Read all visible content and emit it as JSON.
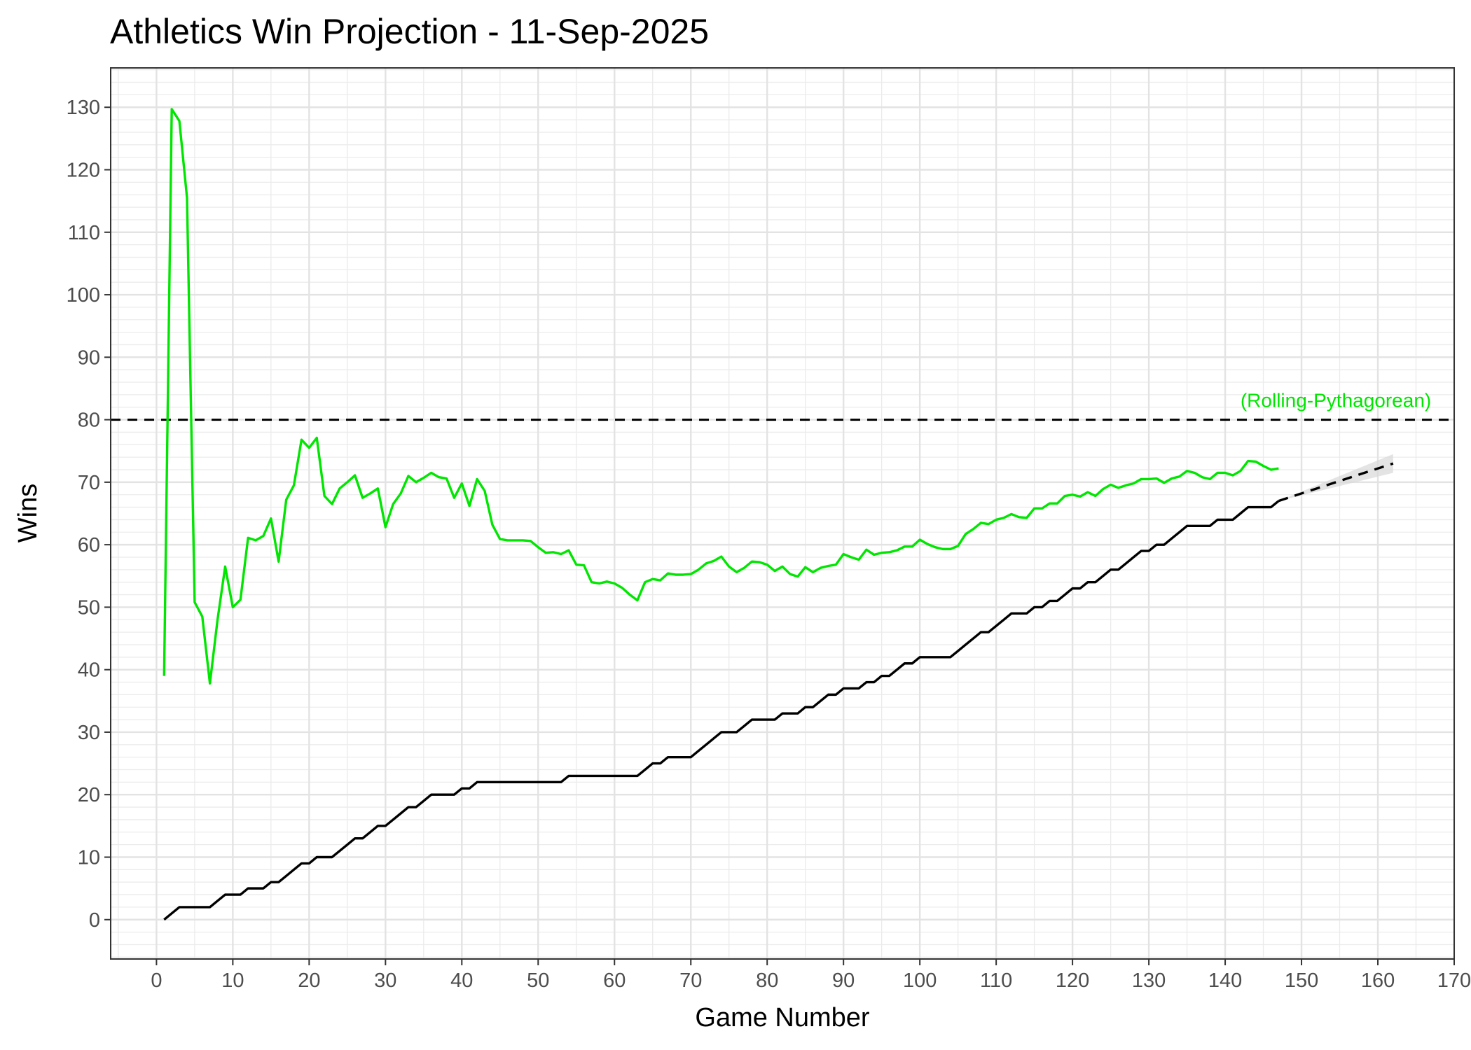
{
  "chart_data": {
    "type": "line",
    "title": "Athletics Win Projection - 11-Sep-2025",
    "xlabel": "Game Number",
    "ylabel": "Wins",
    "xlim": [
      -6,
      170
    ],
    "ylim": [
      -6.3,
      136.3
    ],
    "x_ticks": [
      0,
      10,
      20,
      30,
      40,
      50,
      60,
      70,
      80,
      90,
      100,
      110,
      120,
      130,
      140,
      150,
      160,
      170
    ],
    "y_ticks": [
      0,
      10,
      20,
      30,
      40,
      50,
      60,
      70,
      80,
      90,
      100,
      110,
      120,
      130
    ],
    "grid": true,
    "reference_line": {
      "y": 80,
      "style": "dashed",
      "color": "#000000"
    },
    "annotation": {
      "text": "(Rolling-Pythagorean)",
      "x": 142,
      "y": 82,
      "color": "#00e600"
    },
    "colors": {
      "pythagorean": "#00e600",
      "actual": "#000000",
      "band": "#d9d9d9"
    },
    "series": [
      {
        "style": "solid",
        "color": "#00e600",
        "x": [
          1,
          2,
          3,
          4,
          5,
          6,
          7,
          8,
          9,
          10,
          11,
          12,
          13,
          14,
          15,
          16,
          17,
          18,
          19,
          20,
          21,
          22,
          23,
          24,
          25,
          26,
          27,
          28,
          29,
          30,
          31,
          32,
          33,
          34,
          35,
          36,
          37,
          38,
          39,
          40,
          41,
          42,
          43,
          44,
          45,
          46,
          47,
          48,
          49,
          50,
          51,
          52,
          53,
          54,
          55,
          56,
          57,
          58,
          59,
          60,
          61,
          62,
          63,
          64,
          65,
          66,
          67,
          68,
          69,
          70,
          71,
          72,
          73,
          74,
          75,
          76,
          77,
          78,
          79,
          80,
          81,
          82,
          83,
          84,
          85,
          86,
          87,
          88,
          89,
          90,
          91,
          92,
          93,
          94,
          95,
          96,
          97,
          98,
          99,
          100,
          101,
          102,
          103,
          104,
          105,
          106,
          107,
          108,
          109,
          110,
          111,
          112,
          113,
          114,
          115,
          116,
          117,
          118,
          119,
          120,
          121,
          122,
          123,
          124,
          125,
          126,
          127,
          128,
          129,
          130,
          131,
          132,
          133,
          134,
          135,
          136,
          137,
          138,
          139,
          140,
          141,
          142,
          143,
          144,
          145,
          146,
          147
        ],
        "y": [
          39,
          129.7,
          127.8,
          115.5,
          50.8,
          48.5,
          37.8,
          48,
          56.5,
          50,
          51.2,
          61.1,
          60.7,
          61.4,
          64.2,
          57.3,
          67.2,
          69.5,
          76.8,
          75.5,
          77.1,
          67.8,
          66.5,
          69,
          70,
          71.1,
          67.5,
          68.2,
          69,
          62.8,
          66.5,
          68.2,
          71,
          70,
          70.7,
          71.5,
          70.8,
          70.6,
          67.5,
          69.8,
          66.2,
          70.5,
          68.6,
          63.2,
          60.9,
          60.7,
          60.7,
          60.7,
          60.6,
          59.6,
          58.7,
          58.8,
          58.5,
          59.1,
          56.8,
          56.7,
          54,
          53.8,
          54.1,
          53.8,
          53.1,
          52,
          51.1,
          54,
          54.5,
          54.3,
          55.4,
          55.2,
          55.2,
          55.3,
          56,
          57,
          57.4,
          58.1,
          56.5,
          55.6,
          56.3,
          57.3,
          57.2,
          56.8,
          55.8,
          56.5,
          55.3,
          54.9,
          56.4,
          55.6,
          56.3,
          56.6,
          56.8,
          58.5,
          58,
          57.6,
          59.2,
          58.4,
          58.7,
          58.8,
          59.1,
          59.7,
          59.7,
          60.8,
          60.1,
          59.6,
          59.3,
          59.3,
          59.8,
          61.7,
          62.5,
          63.5,
          63.3,
          64,
          64.3,
          64.9,
          64.4,
          64.3,
          65.8,
          65.8,
          66.6,
          66.6,
          67.8,
          68,
          67.7,
          68.4,
          67.8,
          68.9,
          69.6,
          69.1,
          69.5,
          69.8,
          70.5,
          70.5,
          70.6,
          69.9,
          70.6,
          70.9,
          71.8,
          71.5,
          70.8,
          70.5,
          71.5,
          71.5,
          71.1,
          71.8,
          73.4,
          73.3,
          72.6,
          72,
          72.2
        ]
      },
      {
        "style": "solid",
        "color": "#000000",
        "x": [
          1,
          2,
          3,
          4,
          5,
          6,
          7,
          8,
          9,
          10,
          11,
          12,
          13,
          14,
          15,
          16,
          17,
          18,
          19,
          20,
          21,
          22,
          23,
          24,
          25,
          26,
          27,
          28,
          29,
          30,
          31,
          32,
          33,
          34,
          35,
          36,
          37,
          38,
          39,
          40,
          41,
          42,
          43,
          44,
          45,
          46,
          47,
          48,
          49,
          50,
          51,
          52,
          53,
          54,
          55,
          56,
          57,
          58,
          59,
          60,
          61,
          62,
          63,
          64,
          65,
          66,
          67,
          68,
          69,
          70,
          71,
          72,
          73,
          74,
          75,
          76,
          77,
          78,
          79,
          80,
          81,
          82,
          83,
          84,
          85,
          86,
          87,
          88,
          89,
          90,
          91,
          92,
          93,
          94,
          95,
          96,
          97,
          98,
          99,
          100,
          101,
          102,
          103,
          104,
          105,
          106,
          107,
          108,
          109,
          110,
          111,
          112,
          113,
          114,
          115,
          116,
          117,
          118,
          119,
          120,
          121,
          122,
          123,
          124,
          125,
          126,
          127,
          128,
          129,
          130,
          131,
          132,
          133,
          134,
          135,
          136,
          137,
          138,
          139,
          140,
          141,
          142,
          143,
          144,
          145,
          146,
          147
        ],
        "y": [
          0,
          1,
          2,
          2,
          2,
          2,
          2,
          3,
          4,
          4,
          4,
          5,
          5,
          5,
          6,
          6,
          7,
          8,
          9,
          9,
          10,
          10,
          10,
          11,
          12,
          13,
          13,
          14,
          15,
          15,
          16,
          17,
          18,
          18,
          19,
          20,
          20,
          20,
          20,
          21,
          21,
          22,
          22,
          22,
          22,
          22,
          22,
          22,
          22,
          22,
          22,
          22,
          22,
          23,
          23,
          23,
          23,
          23,
          23,
          23,
          23,
          23,
          23,
          24,
          25,
          25,
          26,
          26,
          26,
          26,
          27,
          28,
          29,
          30,
          30,
          30,
          31,
          32,
          32,
          32,
          32,
          33,
          33,
          33,
          34,
          34,
          35,
          36,
          36,
          37,
          37,
          37,
          38,
          38,
          39,
          39,
          40,
          41,
          41,
          42,
          42,
          42,
          42,
          42,
          43,
          44,
          45,
          46,
          46,
          47,
          48,
          49,
          49,
          49,
          50,
          50,
          51,
          51,
          52,
          53,
          53,
          54,
          54,
          55,
          56,
          56,
          57,
          58,
          59,
          59,
          60,
          60,
          61,
          62,
          63,
          63,
          63,
          63,
          64,
          64,
          64,
          65,
          66,
          66,
          66,
          66,
          67
        ]
      },
      {
        "style": "dashed",
        "color": "#000000",
        "x": [
          147,
          162
        ],
        "y": [
          67,
          73
        ]
      }
    ],
    "projection_band": {
      "x": [
        147,
        162
      ],
      "lower": [
        67,
        71.5
      ],
      "upper": [
        67,
        74.5
      ]
    }
  }
}
